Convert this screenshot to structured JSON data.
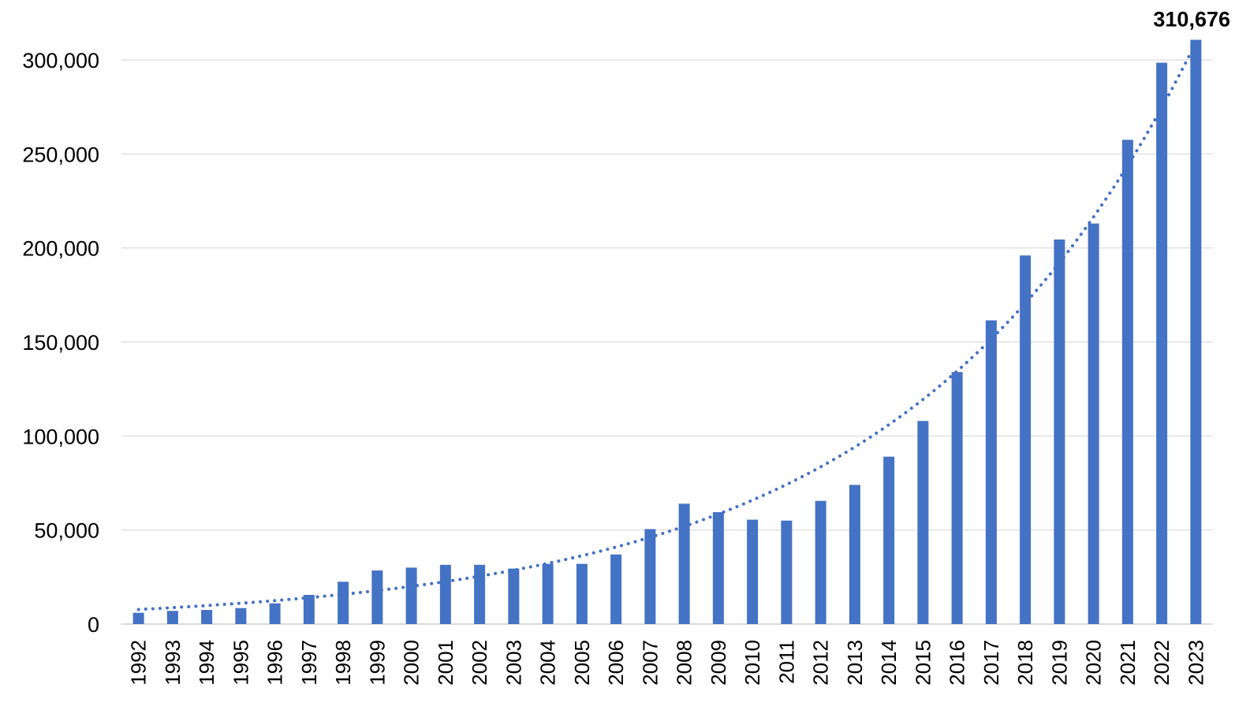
{
  "chart_data": {
    "type": "bar",
    "categories": [
      "1992",
      "1993",
      "1994",
      "1995",
      "1996",
      "1997",
      "1998",
      "1999",
      "2000",
      "2001",
      "2002",
      "2003",
      "2004",
      "2005",
      "2006",
      "2007",
      "2008",
      "2009",
      "2010",
      "2011",
      "2012",
      "2013",
      "2014",
      "2015",
      "2016",
      "2017",
      "2018",
      "2019",
      "2020",
      "2021",
      "2022",
      "2023"
    ],
    "series": [
      {
        "values": [
          6000,
          7000,
          7500,
          8500,
          11000,
          15500,
          22500,
          28500,
          30000,
          31500,
          31500,
          29500,
          32000,
          32000,
          37000,
          50500,
          64000,
          59500,
          55500,
          55000,
          65500,
          74000,
          89000,
          108000,
          134000,
          161500,
          196000,
          204500,
          213000,
          257500,
          298500,
          310676
        ],
        "color": "#4472C4"
      }
    ],
    "trendline": {
      "type": "exponential",
      "style": "dotted",
      "color": "#4472C4"
    },
    "data_labels": [
      {
        "category": "2023",
        "text": "310,676"
      }
    ],
    "y_ticks": [
      "0",
      "50,000",
      "100,000",
      "150,000",
      "200,000",
      "250,000",
      "300,000"
    ],
    "ylim": [
      0,
      300000
    ],
    "grid": true,
    "legend": "none",
    "title": "",
    "xlabel": "",
    "ylabel": ""
  }
}
